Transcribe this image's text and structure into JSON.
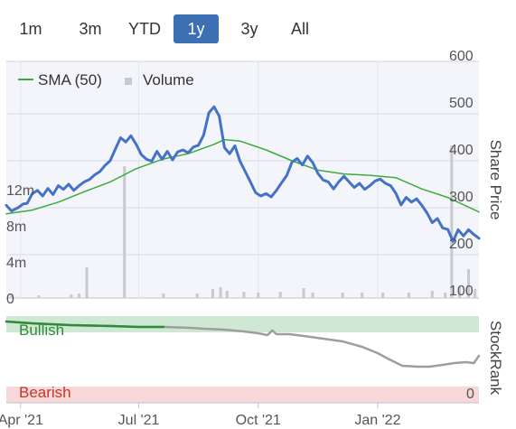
{
  "range_tabs": [
    {
      "label": "1m",
      "active": false
    },
    {
      "label": "3m",
      "active": false
    },
    {
      "label": "YTD",
      "active": false
    },
    {
      "label": "1y",
      "active": true
    },
    {
      "label": "3y",
      "active": false
    },
    {
      "label": "All",
      "active": false
    }
  ],
  "colors": {
    "accent": "#3d6fb4",
    "price": "#4472c4",
    "sma": "#3cab3c",
    "volume": "#c8c8d0",
    "bullish_band": "#cfe8d4",
    "bearish_band": "#f7d7d7",
    "bullish_text": "#2e8b3a",
    "bearish_text": "#c0392b",
    "rank_line": "#9e9e9e"
  },
  "chart_data": [
    {
      "type": "line",
      "legend": [
        {
          "name": "SMA (50)",
          "marker": "line",
          "color": "#3cab3c"
        },
        {
          "name": "Volume",
          "marker": "square",
          "color": "#c8c8d0"
        }
      ],
      "right_axis_label": "Share Price",
      "right_ticks": [
        "600",
        "500",
        "400",
        "300",
        "200",
        "100"
      ],
      "right_tick_values": [
        600,
        500,
        400,
        300,
        200,
        100
      ],
      "ylim": [
        100,
        600
      ],
      "left_ticks": [
        "12m",
        "8m",
        "4m",
        "0"
      ],
      "left_tick_values": [
        12,
        8,
        4,
        0
      ],
      "volume_ylim": [
        0,
        28
      ],
      "x_ticks": [
        "Apr '21",
        "Jul '21",
        "Oct '21",
        "Jan '22"
      ],
      "x_tick_dates": [
        "2021-04-01",
        "2021-07-01",
        "2021-10-01",
        "2022-01-01"
      ],
      "xlim": [
        "2021-03-21",
        "2022-03-20"
      ],
      "legend_position": "top-left",
      "series": [
        {
          "name": "Share Price",
          "color": "#4472c4",
          "points": [
            [
              "2021-03-21",
              280
            ],
            [
              "2021-03-25",
              268
            ],
            [
              "2021-03-30",
              275
            ],
            [
              "2021-04-03",
              283
            ],
            [
              "2021-04-06",
              284
            ],
            [
              "2021-04-10",
              305
            ],
            [
              "2021-04-14",
              312
            ],
            [
              "2021-04-18",
              300
            ],
            [
              "2021-04-22",
              316
            ],
            [
              "2021-04-26",
              303
            ],
            [
              "2021-04-30",
              322
            ],
            [
              "2021-05-04",
              314
            ],
            [
              "2021-05-08",
              325
            ],
            [
              "2021-05-12",
              312
            ],
            [
              "2021-05-16",
              322
            ],
            [
              "2021-05-20",
              330
            ],
            [
              "2021-05-24",
              335
            ],
            [
              "2021-05-28",
              345
            ],
            [
              "2021-06-01",
              352
            ],
            [
              "2021-06-05",
              365
            ],
            [
              "2021-06-09",
              375
            ],
            [
              "2021-06-13",
              400
            ],
            [
              "2021-06-17",
              424
            ],
            [
              "2021-06-21",
              415
            ],
            [
              "2021-06-25",
              428
            ],
            [
              "2021-06-29",
              410
            ],
            [
              "2021-07-03",
              388
            ],
            [
              "2021-07-07",
              378
            ],
            [
              "2021-07-11",
              374
            ],
            [
              "2021-07-15",
              395
            ],
            [
              "2021-07-19",
              378
            ],
            [
              "2021-07-23",
              395
            ],
            [
              "2021-07-27",
              377
            ],
            [
              "2021-07-31",
              394
            ],
            [
              "2021-08-04",
              398
            ],
            [
              "2021-08-08",
              392
            ],
            [
              "2021-08-12",
              404
            ],
            [
              "2021-08-16",
              408
            ],
            [
              "2021-08-20",
              430
            ],
            [
              "2021-08-24",
              477
            ],
            [
              "2021-08-28",
              490
            ],
            [
              "2021-09-01",
              470
            ],
            [
              "2021-09-05",
              403
            ],
            [
              "2021-09-09",
              390
            ],
            [
              "2021-09-13",
              407
            ],
            [
              "2021-09-17",
              374
            ],
            [
              "2021-09-21",
              352
            ],
            [
              "2021-09-25",
              330
            ],
            [
              "2021-09-29",
              307
            ],
            [
              "2021-10-03",
              300
            ],
            [
              "2021-10-07",
              305
            ],
            [
              "2021-10-11",
              298
            ],
            [
              "2021-10-15",
              312
            ],
            [
              "2021-10-19",
              328
            ],
            [
              "2021-10-23",
              344
            ],
            [
              "2021-10-27",
              372
            ],
            [
              "2021-10-31",
              380
            ],
            [
              "2021-11-04",
              366
            ],
            [
              "2021-11-08",
              385
            ],
            [
              "2021-11-12",
              371
            ],
            [
              "2021-11-16",
              348
            ],
            [
              "2021-11-20",
              334
            ],
            [
              "2021-11-24",
              330
            ],
            [
              "2021-11-28",
              315
            ],
            [
              "2021-12-02",
              330
            ],
            [
              "2021-12-06",
              342
            ],
            [
              "2021-12-10",
              330
            ],
            [
              "2021-12-14",
              318
            ],
            [
              "2021-12-18",
              327
            ],
            [
              "2021-12-22",
              314
            ],
            [
              "2021-12-26",
              322
            ],
            [
              "2021-12-30",
              332
            ],
            [
              "2022-01-03",
              336
            ],
            [
              "2022-01-07",
              327
            ],
            [
              "2022-01-11",
              322
            ],
            [
              "2022-01-15",
              306
            ],
            [
              "2022-01-19",
              281
            ],
            [
              "2022-01-23",
              297
            ],
            [
              "2022-01-27",
              287
            ],
            [
              "2022-01-31",
              294
            ],
            [
              "2022-02-04",
              280
            ],
            [
              "2022-02-08",
              264
            ],
            [
              "2022-02-12",
              243
            ],
            [
              "2022-02-16",
              252
            ],
            [
              "2022-02-20",
              232
            ],
            [
              "2022-02-24",
              229
            ],
            [
              "2022-02-28",
              203
            ],
            [
              "2022-03-04",
              228
            ],
            [
              "2022-03-08",
              215
            ],
            [
              "2022-03-12",
              228
            ],
            [
              "2022-03-16",
              218
            ],
            [
              "2022-03-20",
              210
            ]
          ]
        },
        {
          "name": "SMA (50)",
          "color": "#3cab3c",
          "points": [
            [
              "2021-03-21",
              262
            ],
            [
              "2021-04-10",
              270
            ],
            [
              "2021-04-30",
              287
            ],
            [
              "2021-05-20",
              309
            ],
            [
              "2021-06-09",
              330
            ],
            [
              "2021-06-29",
              358
            ],
            [
              "2021-07-19",
              378
            ],
            [
              "2021-08-08",
              390
            ],
            [
              "2021-08-28",
              410
            ],
            [
              "2021-09-05",
              420
            ],
            [
              "2021-09-17",
              417
            ],
            [
              "2021-10-07",
              398
            ],
            [
              "2021-10-27",
              375
            ],
            [
              "2021-11-16",
              355
            ],
            [
              "2021-12-06",
              347
            ],
            [
              "2021-12-26",
              344
            ],
            [
              "2022-01-15",
              339
            ],
            [
              "2022-02-04",
              315
            ],
            [
              "2022-02-24",
              297
            ],
            [
              "2022-03-20",
              266
            ]
          ]
        },
        {
          "name": "Volume",
          "type": "bar",
          "color": "#c8c8d0",
          "unit": "m",
          "points": [
            [
              "2021-03-25",
              0.4
            ],
            [
              "2021-04-15",
              0.3
            ],
            [
              "2021-05-10",
              0.4
            ],
            [
              "2021-05-16",
              0.5
            ],
            [
              "2021-05-22",
              3.4
            ],
            [
              "2021-06-20",
              14.6
            ],
            [
              "2021-07-20",
              0.5
            ],
            [
              "2021-08-15",
              0.5
            ],
            [
              "2021-08-27",
              1.0
            ],
            [
              "2021-09-02",
              1.2
            ],
            [
              "2021-09-07",
              0.8
            ],
            [
              "2021-09-20",
              0.7
            ],
            [
              "2021-10-01",
              0.6
            ],
            [
              "2021-10-18",
              0.7
            ],
            [
              "2021-11-05",
              1.1
            ],
            [
              "2021-11-12",
              0.6
            ],
            [
              "2021-12-05",
              0.6
            ],
            [
              "2021-12-20",
              0.6
            ],
            [
              "2022-01-05",
              0.6
            ],
            [
              "2022-01-25",
              0.6
            ],
            [
              "2022-02-12",
              0.8
            ],
            [
              "2022-02-22",
              0.6
            ],
            [
              "2022-02-27",
              16.9
            ],
            [
              "2022-03-05",
              1.2
            ],
            [
              "2022-03-12",
              3.2
            ],
            [
              "2022-03-17",
              1.0
            ]
          ]
        }
      ]
    },
    {
      "type": "line",
      "right_axis_label": "StockRank",
      "right_ticks": [
        "100",
        "0"
      ],
      "right_tick_values": [
        100,
        0
      ],
      "ylim": [
        0,
        100
      ],
      "bands": [
        {
          "label": "Bullish",
          "from": 80,
          "to": 100
        },
        {
          "label": "Bearish",
          "from": 0,
          "to": 20
        }
      ],
      "series": [
        {
          "name": "StockRank",
          "points": [
            [
              "2021-03-21",
              90
            ],
            [
              "2021-04-10",
              88
            ],
            [
              "2021-05-10",
              86
            ],
            [
              "2021-06-10",
              85
            ],
            [
              "2021-07-01",
              84
            ],
            [
              "2021-07-20",
              84
            ],
            [
              "2021-08-10",
              83
            ],
            [
              "2021-08-20",
              82
            ],
            [
              "2021-09-05",
              81
            ],
            [
              "2021-09-20",
              79
            ],
            [
              "2021-10-01",
              77
            ],
            [
              "2021-10-08",
              75
            ],
            [
              "2021-10-12",
              80
            ],
            [
              "2021-10-15",
              76
            ],
            [
              "2021-10-25",
              76
            ],
            [
              "2021-11-05",
              74
            ],
            [
              "2021-11-20",
              71
            ],
            [
              "2021-12-05",
              68
            ],
            [
              "2021-12-20",
              62
            ],
            [
              "2022-01-01",
              55
            ],
            [
              "2022-01-10",
              48
            ],
            [
              "2022-01-20",
              41
            ],
            [
              "2022-02-01",
              40
            ],
            [
              "2022-02-10",
              40
            ],
            [
              "2022-02-20",
              42
            ],
            [
              "2022-03-01",
              44
            ],
            [
              "2022-03-10",
              45
            ],
            [
              "2022-03-16",
              44
            ],
            [
              "2022-03-20",
              52
            ]
          ],
          "highlight_until": "2021-07-26"
        }
      ]
    }
  ]
}
